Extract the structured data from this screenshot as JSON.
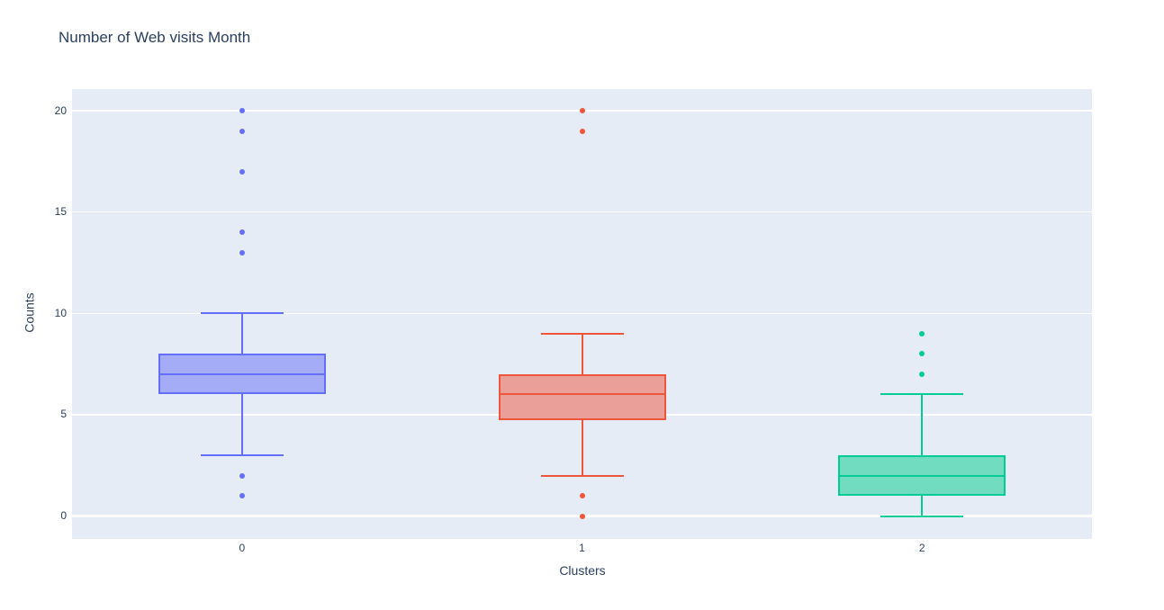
{
  "chart": {
    "paper_color": "#ffffff",
    "plot_bg_color": "#e5ecf6",
    "grid_color": "#ffffff",
    "text_color": "#2a3f5f"
  },
  "chart_data": {
    "type": "box",
    "title": "Number of Web visits Month",
    "xlabel": "Clusters",
    "ylabel": "Counts",
    "categories": [
      "0",
      "1",
      "2"
    ],
    "yticks": [
      0,
      5,
      10,
      15,
      20
    ],
    "ylim": [
      -1.13,
      21.07
    ],
    "grid": true,
    "legend": false,
    "series": [
      {
        "name": "0",
        "line_color": "#636efa",
        "fill_color": "#a4abf7",
        "q1": 6,
        "median": 7,
        "q3": 8,
        "whisker_low": 3,
        "whisker_high": 10,
        "outliers": [
          20,
          19,
          17,
          14,
          13,
          2,
          1
        ]
      },
      {
        "name": "1",
        "line_color": "#ef553b",
        "fill_color": "#eaa098",
        "q1": 4.75,
        "median": 6,
        "q3": 7,
        "whisker_low": 2,
        "whisker_high": 9,
        "outliers": [
          20,
          19,
          1,
          0
        ]
      },
      {
        "name": "2",
        "line_color": "#00cc96",
        "fill_color": "#72dcc1",
        "q1": 1,
        "median": 2,
        "q3": 3,
        "whisker_low": 0,
        "whisker_high": 6,
        "outliers": [
          9,
          8,
          7
        ]
      }
    ]
  }
}
